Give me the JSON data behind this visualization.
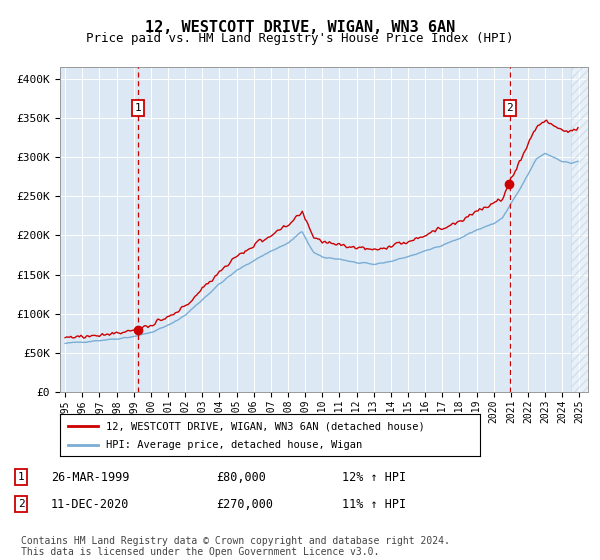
{
  "title": "12, WESTCOTT DRIVE, WIGAN, WN3 6AN",
  "subtitle": "Price paid vs. HM Land Registry's House Price Index (HPI)",
  "title_fontsize": 11,
  "subtitle_fontsize": 9,
  "legend_line1": "12, WESTCOTT DRIVE, WIGAN, WN3 6AN (detached house)",
  "legend_line2": "HPI: Average price, detached house, Wigan",
  "annotation1_date": "26-MAR-1999",
  "annotation1_price": "£80,000",
  "annotation1_hpi": "12% ↑ HPI",
  "annotation1_year": 1999.23,
  "annotation2_date": "11-DEC-2020",
  "annotation2_price": "£270,000",
  "annotation2_hpi": "11% ↑ HPI",
  "annotation2_year": 2020.94,
  "ylabel_ticks": [
    "£0",
    "£50K",
    "£100K",
    "£150K",
    "£200K",
    "£250K",
    "£300K",
    "£350K",
    "£400K"
  ],
  "ytick_values": [
    0,
    50000,
    100000,
    150000,
    200000,
    250000,
    300000,
    350000,
    400000
  ],
  "red_color": "#cc0000",
  "blue_color": "#7aadd4",
  "bg_color": "#dce9f5",
  "grid_color": "#ffffff",
  "dashed_line_color": "#cc0000",
  "footer_text": "Contains HM Land Registry data © Crown copyright and database right 2024.\nThis data is licensed under the Open Government Licence v3.0.",
  "footer_fontsize": 7,
  "xmin": 1994.7,
  "xmax": 2025.5,
  "ymin": 0,
  "ymax": 415000
}
